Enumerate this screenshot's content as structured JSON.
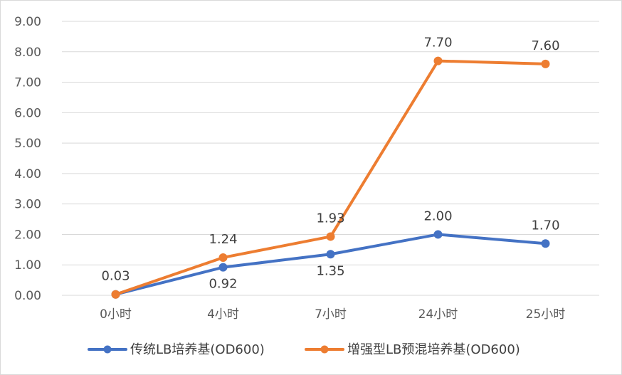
{
  "chart_data": {
    "type": "line",
    "categories": [
      "0小时",
      "4小时",
      "7小时",
      "24小时",
      "25小时"
    ],
    "y_ticks": [
      "0.00",
      "1.00",
      "2.00",
      "3.00",
      "4.00",
      "5.00",
      "6.00",
      "7.00",
      "8.00",
      "9.00"
    ],
    "ylim": [
      0,
      9
    ],
    "grid": true,
    "legend_position": "bottom",
    "series": [
      {
        "name": "传统LB培养基(OD600)",
        "color": "#4472c4",
        "values": [
          0.03,
          0.92,
          1.35,
          2.0,
          1.7
        ],
        "labels": [
          "",
          "0.92",
          "1.35",
          "2.00",
          "1.70"
        ]
      },
      {
        "name": "增强型LB预混培养基(OD600)",
        "color": "#ed7d31",
        "values": [
          0.03,
          1.24,
          1.93,
          7.7,
          7.6
        ],
        "labels": [
          "0.03",
          "1.24",
          "1.93",
          "7.70",
          "7.60"
        ]
      }
    ]
  }
}
